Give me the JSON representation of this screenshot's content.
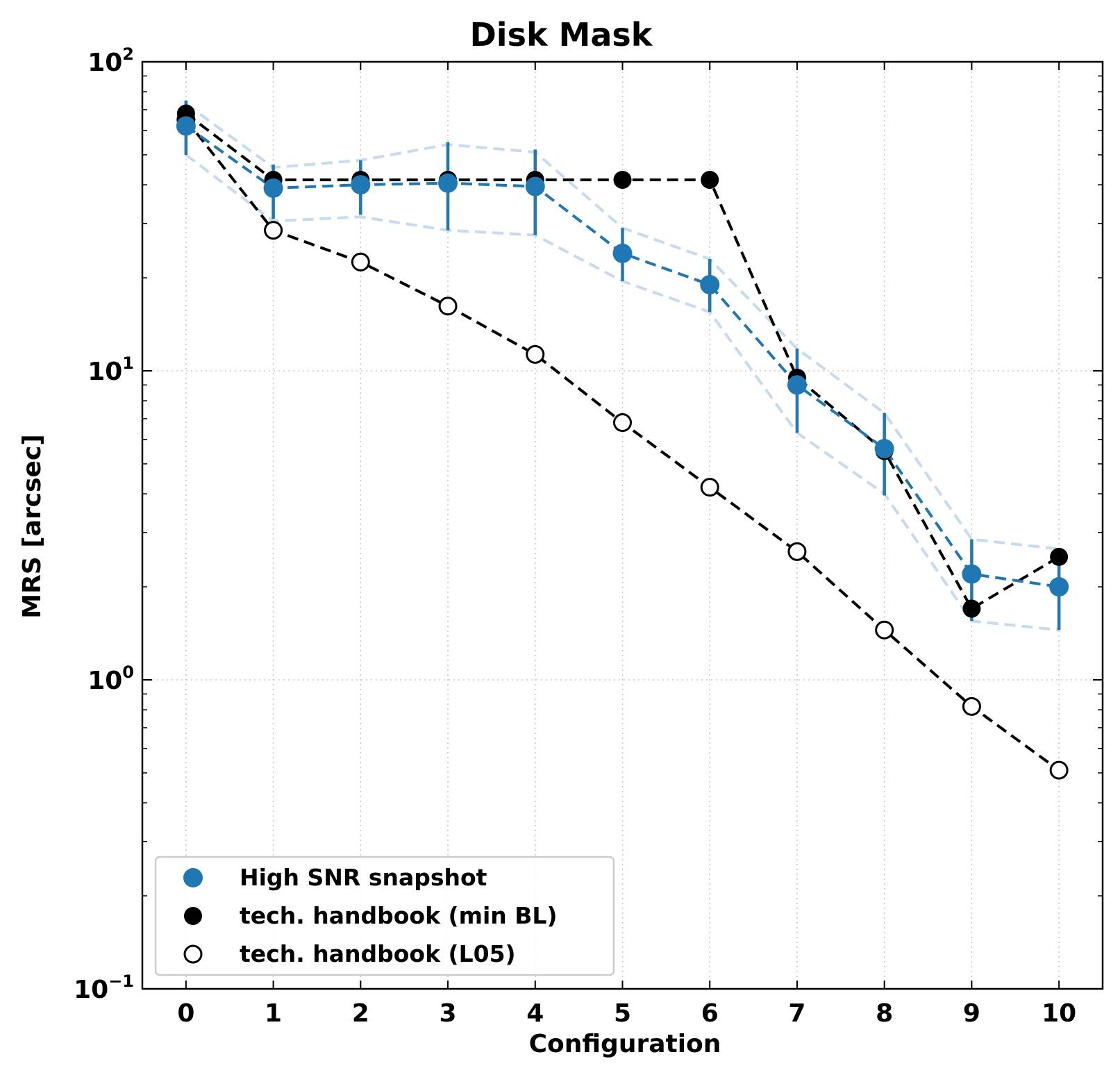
{
  "chart_data": {
    "type": "line",
    "title": "Disk Mask",
    "xlabel": "Configuration",
    "ylabel": "MRS [arcsec]",
    "yscale": "log",
    "xlim": [
      -0.5,
      10.5
    ],
    "ylim": [
      0.1,
      100
    ],
    "x_ticks": [
      "0",
      "1",
      "2",
      "3",
      "4",
      "5",
      "6",
      "7",
      "8",
      "9",
      "10"
    ],
    "y_ticks": [
      {
        "value": 100,
        "base": "10",
        "exp": "2"
      },
      {
        "value": 10,
        "base": "10",
        "exp": "1"
      },
      {
        "value": 1,
        "base": "10",
        "exp": "0"
      },
      {
        "value": 0.1,
        "base": "10",
        "exp": "−1"
      }
    ],
    "grid": true,
    "legend_position": "lower-left",
    "x": [
      0,
      1,
      2,
      3,
      4,
      5,
      6,
      7,
      8,
      9,
      10
    ],
    "series": [
      {
        "name": "High SNR snapshot",
        "color": "#1f77b4",
        "marker": "filled-circle",
        "line": "dashed",
        "values": [
          62,
          39,
          40,
          40.5,
          39.5,
          24,
          19,
          9,
          5.6,
          2.2,
          2.0
        ],
        "err_low": [
          50,
          31,
          32,
          28.5,
          27.5,
          19.5,
          15.5,
          6.3,
          3.95,
          1.55,
          1.45
        ],
        "err_high": [
          75,
          46.5,
          48,
          55,
          52,
          29,
          23,
          11.8,
          7.3,
          2.85,
          2.6
        ],
        "band_low": [
          50,
          30.5,
          31.5,
          28.5,
          27.5,
          19.5,
          15.5,
          6.3,
          4.0,
          1.55,
          1.45
        ],
        "band_high": [
          73,
          45.5,
          48,
          54,
          51,
          29,
          23,
          11.8,
          7.3,
          2.85,
          2.65
        ],
        "band_color": "#c6dbef"
      },
      {
        "name": "tech. handbook (min BL)",
        "color": "#000000",
        "marker": "filled-circle",
        "line": "dashed",
        "values": [
          68,
          41.5,
          41.5,
          41.5,
          41.5,
          41.5,
          41.5,
          9.5,
          5.5,
          1.7,
          2.5
        ]
      },
      {
        "name": "tech. handbook (L05)",
        "color": "#000000",
        "marker": "open-circle",
        "line": "dashed",
        "values": [
          65,
          28.5,
          22.5,
          16.2,
          11.3,
          6.8,
          4.2,
          2.6,
          1.45,
          0.82,
          0.51
        ]
      }
    ]
  }
}
